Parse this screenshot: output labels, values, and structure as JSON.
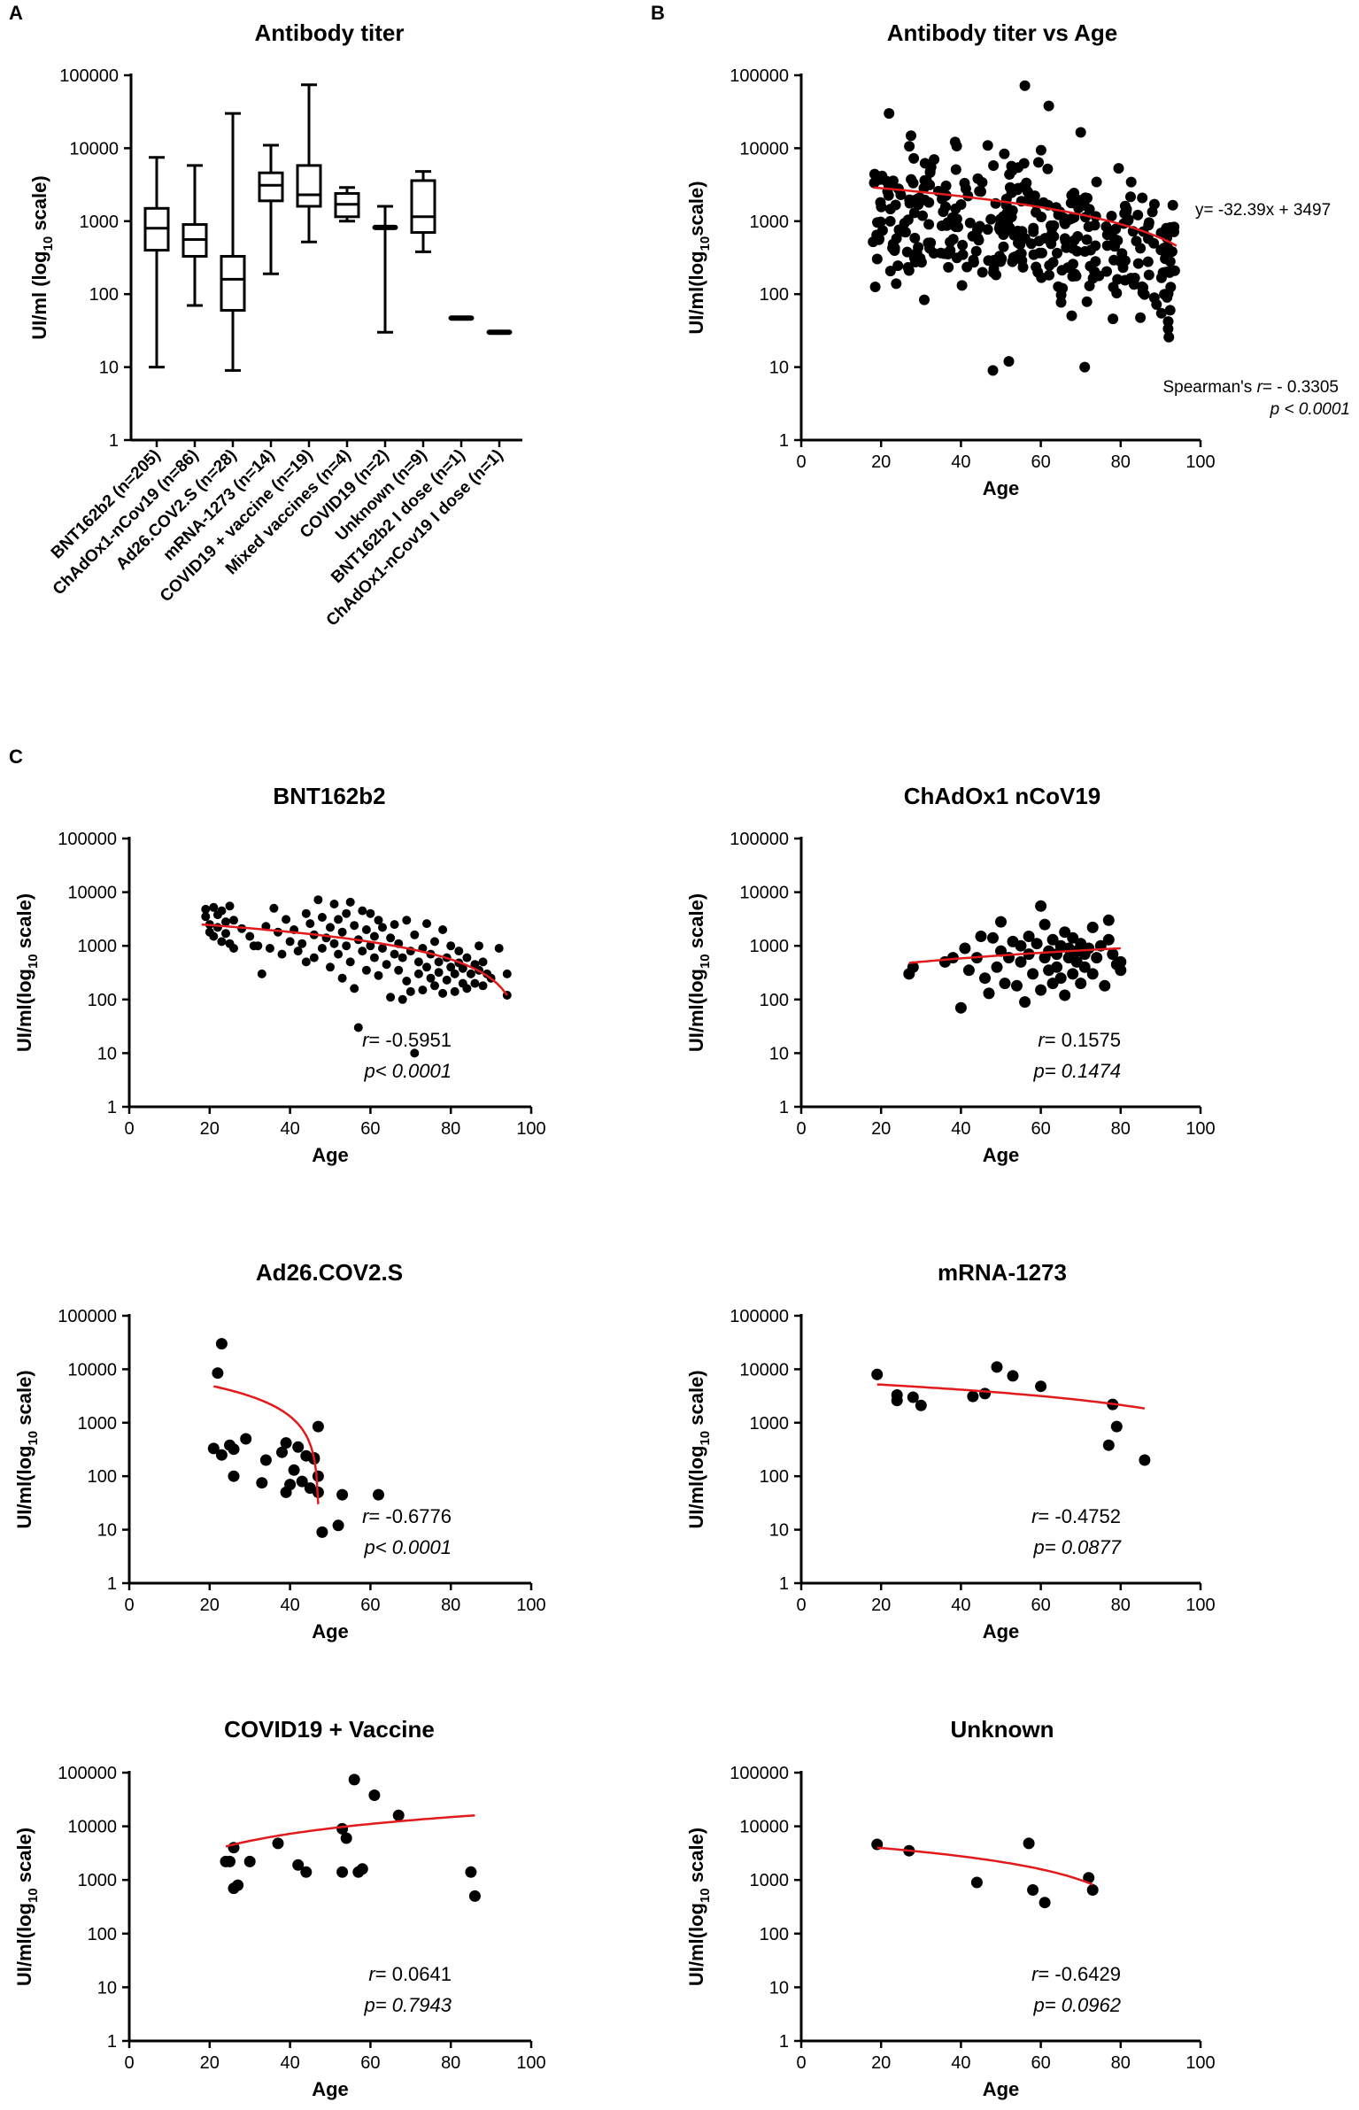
{
  "panels": {
    "A": "A",
    "B": "B",
    "C": "C"
  },
  "colors": {
    "fit": "#e31a1c",
    "point": "#000000",
    "axis": "#000000"
  },
  "chart_data": [
    {
      "id": "A",
      "type": "box",
      "title": "Antibody titer",
      "ylabel": "UI/ml (log10 scale)",
      "yscale": "log",
      "ylim": [
        1,
        100000
      ],
      "yticks": [
        "1",
        "10",
        "100",
        "1000",
        "10000",
        "100000"
      ],
      "categories": [
        "BNT162b2 (n=205)",
        "ChAdOx1-nCov19 (n=86)",
        "Ad26.COV2.S (n=28)",
        "mRNA-1273 (n=14)",
        "COVID19 + vaccine (n=19)",
        "Mixed vaccines (n=4)",
        "COVID19 (n=2)",
        "Unknown (n=9)",
        "BNT162b2 I dose (n=1)",
        "ChAdOx1-nCov19 I dose (n=1)"
      ],
      "boxes": [
        {
          "min": 10,
          "q1": 400,
          "median": 800,
          "q3": 1500,
          "max": 7500
        },
        {
          "min": 70,
          "q1": 330,
          "median": 560,
          "q3": 900,
          "max": 5800
        },
        {
          "min": 9,
          "q1": 60,
          "median": 160,
          "q3": 330,
          "max": 30000
        },
        {
          "min": 190,
          "q1": 1900,
          "median": 3100,
          "q3": 4600,
          "max": 11000
        },
        {
          "min": 520,
          "q1": 1600,
          "median": 2300,
          "q3": 5800,
          "max": 74000
        },
        {
          "min": 1000,
          "q1": 1150,
          "median": 1700,
          "q3": 2400,
          "max": 2900
        },
        {
          "min": 30,
          "q1": 780,
          "median": 800,
          "q3": 820,
          "max": 1600
        },
        {
          "min": 380,
          "q1": 700,
          "median": 1150,
          "q3": 3600,
          "max": 4800
        },
        {
          "min": 47,
          "q1": 47,
          "median": 47,
          "q3": 47,
          "max": 47
        },
        {
          "min": 30,
          "q1": 30,
          "median": 30,
          "q3": 30,
          "max": 30
        }
      ]
    },
    {
      "id": "B",
      "type": "scatter",
      "title": "Antibody titer vs Age",
      "xlabel": "Age",
      "ylabel": "UI/ml(log10scale)",
      "xlim": [
        0,
        100
      ],
      "ylim": [
        1,
        100000
      ],
      "xticks": [
        "0",
        "20",
        "40",
        "60",
        "80",
        "100"
      ],
      "yticks": [
        "1",
        "10",
        "100",
        "1000",
        "10000",
        "100000"
      ],
      "fit": {
        "x": [
          18,
          94
        ],
        "y": [
          2900,
          460
        ]
      },
      "equation": "y= -32.39x + 3497",
      "stat_r": "Spearman's r= - 0.3305",
      "stat_p": "p < 0.0001"
    },
    {
      "id": "C1",
      "type": "scatter",
      "title": "BNT162b2",
      "xlabel": "Age",
      "ylabel": "UI/ml(log10 scale)",
      "xlim": [
        0,
        100
      ],
      "ylim": [
        1,
        100000
      ],
      "xticks": [
        "0",
        "20",
        "40",
        "60",
        "80",
        "100"
      ],
      "yticks": [
        "1",
        "10",
        "100",
        "1000",
        "10000",
        "100000"
      ],
      "points": [
        [
          19,
          4800
        ],
        [
          19,
          3500
        ],
        [
          20,
          2500
        ],
        [
          20,
          1800
        ],
        [
          21,
          5200
        ],
        [
          21,
          1500
        ],
        [
          22,
          3800
        ],
        [
          22,
          2200
        ],
        [
          23,
          1200
        ],
        [
          23,
          4500
        ],
        [
          24,
          2800
        ],
        [
          24,
          1700
        ],
        [
          25,
          5500
        ],
        [
          25,
          1100
        ],
        [
          26,
          3000
        ],
        [
          26,
          900
        ],
        [
          28,
          2100
        ],
        [
          30,
          1500
        ],
        [
          31,
          1000
        ],
        [
          32,
          1000
        ],
        [
          33,
          300
        ],
        [
          34,
          2300
        ],
        [
          35,
          900
        ],
        [
          36,
          5000
        ],
        [
          37,
          1800
        ],
        [
          38,
          700
        ],
        [
          39,
          3100
        ],
        [
          40,
          1200
        ],
        [
          41,
          2000
        ],
        [
          42,
          800
        ],
        [
          43,
          1100
        ],
        [
          44,
          4000
        ],
        [
          44,
          500
        ],
        [
          45,
          2600
        ],
        [
          46,
          1600
        ],
        [
          46,
          600
        ],
        [
          47,
          7200
        ],
        [
          48,
          3400
        ],
        [
          48,
          900
        ],
        [
          49,
          1400
        ],
        [
          50,
          2200
        ],
        [
          50,
          400
        ],
        [
          51,
          6000
        ],
        [
          51,
          1100
        ],
        [
          52,
          3100
        ],
        [
          52,
          700
        ],
        [
          53,
          1800
        ],
        [
          53,
          250
        ],
        [
          54,
          4000
        ],
        [
          54,
          1000
        ],
        [
          55,
          6500
        ],
        [
          55,
          500
        ],
        [
          56,
          2400
        ],
        [
          56,
          160
        ],
        [
          57,
          30
        ],
        [
          57,
          1300
        ],
        [
          58,
          4500
        ],
        [
          58,
          800
        ],
        [
          59,
          2000
        ],
        [
          59,
          350
        ],
        [
          60,
          1000
        ],
        [
          60,
          4000
        ],
        [
          61,
          600
        ],
        [
          61,
          1500
        ],
        [
          62,
          3000
        ],
        [
          62,
          280
        ],
        [
          63,
          900
        ],
        [
          63,
          2200
        ],
        [
          64,
          450
        ],
        [
          65,
          1400
        ],
        [
          65,
          110
        ],
        [
          66,
          700
        ],
        [
          66,
          2500
        ],
        [
          67,
          350
        ],
        [
          67,
          1100
        ],
        [
          68,
          100
        ],
        [
          68,
          600
        ],
        [
          69,
          3000
        ],
        [
          69,
          220
        ],
        [
          70,
          800
        ],
        [
          70,
          140
        ],
        [
          71,
          10
        ],
        [
          71,
          1600
        ],
        [
          72,
          500
        ],
        [
          72,
          300
        ],
        [
          73,
          900
        ],
        [
          73,
          150
        ],
        [
          74,
          2600
        ],
        [
          74,
          400
        ],
        [
          75,
          700
        ],
        [
          75,
          250
        ],
        [
          76,
          1200
        ],
        [
          76,
          180
        ],
        [
          77,
          500
        ],
        [
          77,
          320
        ],
        [
          78,
          2000
        ],
        [
          78,
          130
        ],
        [
          79,
          600
        ],
        [
          79,
          230
        ],
        [
          80,
          400
        ],
        [
          80,
          1000
        ],
        [
          81,
          300
        ],
        [
          81,
          140
        ],
        [
          82,
          800
        ],
        [
          82,
          480
        ],
        [
          83,
          200
        ],
        [
          83,
          380
        ],
        [
          84,
          600
        ],
        [
          84,
          160
        ],
        [
          85,
          300
        ],
        [
          86,
          450
        ],
        [
          86,
          200
        ],
        [
          87,
          1000
        ],
        [
          87,
          350
        ],
        [
          88,
          500
        ],
        [
          88,
          180
        ],
        [
          89,
          300
        ],
        [
          90,
          250
        ],
        [
          92,
          900
        ],
        [
          94,
          300
        ],
        [
          94,
          120
        ]
      ],
      "fit": {
        "x": [
          18,
          94
        ],
        "y": [
          2500,
          120
        ]
      },
      "stat_r": "r= -0.5951",
      "stat_p": "p< 0.0001"
    },
    {
      "id": "C2",
      "type": "scatter",
      "title": "ChAdOx1 nCoV19",
      "xlabel": "Age",
      "ylabel": "UI/ml(log10 scale)",
      "xlim": [
        0,
        100
      ],
      "ylim": [
        1,
        100000
      ],
      "xticks": [
        "0",
        "20",
        "40",
        "60",
        "80",
        "100"
      ],
      "yticks": [
        "1",
        "10",
        "100",
        "1000",
        "10000",
        "100000"
      ],
      "points": [
        [
          27,
          300
        ],
        [
          28,
          400
        ],
        [
          36,
          500
        ],
        [
          38,
          600
        ],
        [
          40,
          70
        ],
        [
          41,
          900
        ],
        [
          42,
          350
        ],
        [
          44,
          600
        ],
        [
          45,
          1500
        ],
        [
          46,
          250
        ],
        [
          47,
          130
        ],
        [
          48,
          1400
        ],
        [
          49,
          400
        ],
        [
          50,
          800
        ],
        [
          50,
          2800
        ],
        [
          51,
          200
        ],
        [
          52,
          600
        ],
        [
          53,
          1200
        ],
        [
          54,
          180
        ],
        [
          55,
          500
        ],
        [
          55,
          1000
        ],
        [
          56,
          90
        ],
        [
          57,
          700
        ],
        [
          57,
          1500
        ],
        [
          58,
          300
        ],
        [
          59,
          1100
        ],
        [
          60,
          5500
        ],
        [
          60,
          150
        ],
        [
          61,
          600
        ],
        [
          61,
          2500
        ],
        [
          62,
          800
        ],
        [
          62,
          350
        ],
        [
          63,
          1300
        ],
        [
          63,
          200
        ],
        [
          64,
          700
        ],
        [
          64,
          400
        ],
        [
          65,
          1000
        ],
        [
          65,
          250
        ],
        [
          66,
          1800
        ],
        [
          66,
          120
        ],
        [
          67,
          600
        ],
        [
          67,
          900
        ],
        [
          68,
          300
        ],
        [
          68,
          1400
        ],
        [
          69,
          500
        ],
        [
          69,
          800
        ],
        [
          70,
          200
        ],
        [
          70,
          1100
        ],
        [
          71,
          400
        ],
        [
          71,
          700
        ],
        [
          72,
          900
        ],
        [
          73,
          2200
        ],
        [
          73,
          300
        ],
        [
          74,
          600
        ],
        [
          75,
          1000
        ],
        [
          76,
          180
        ],
        [
          77,
          1300
        ],
        [
          77,
          3000
        ],
        [
          78,
          700
        ],
        [
          79,
          450
        ],
        [
          80,
          500
        ],
        [
          80,
          350
        ]
      ],
      "fit": {
        "x": [
          27,
          80
        ],
        "y": [
          480,
          900
        ]
      },
      "stat_r": "r= 0.1575",
      "stat_p": "p= 0.1474"
    },
    {
      "id": "C3",
      "type": "scatter",
      "title": "Ad26.COV2.S",
      "xlabel": "Age",
      "ylabel": "UI/ml(log10 scale)",
      "xlim": [
        0,
        100
      ],
      "ylim": [
        1,
        100000
      ],
      "xticks": [
        "0",
        "20",
        "40",
        "60",
        "80",
        "100"
      ],
      "yticks": [
        "1",
        "10",
        "100",
        "1000",
        "10000",
        "100000"
      ],
      "points": [
        [
          21,
          330
        ],
        [
          22,
          8500
        ],
        [
          23,
          30000
        ],
        [
          23,
          250
        ],
        [
          25,
          380
        ],
        [
          26,
          100
        ],
        [
          26,
          320
        ],
        [
          29,
          500
        ],
        [
          33,
          75
        ],
        [
          34,
          200
        ],
        [
          38,
          280
        ],
        [
          39,
          50
        ],
        [
          39,
          420
        ],
        [
          40,
          70
        ],
        [
          41,
          130
        ],
        [
          42,
          350
        ],
        [
          43,
          80
        ],
        [
          44,
          240
        ],
        [
          45,
          60
        ],
        [
          46,
          220
        ],
        [
          47,
          850
        ],
        [
          47,
          100
        ],
        [
          47,
          50
        ],
        [
          48,
          9
        ],
        [
          52,
          12
        ],
        [
          53,
          45
        ],
        [
          62,
          45
        ],
        [
          46,
          210
        ]
      ],
      "fit": {
        "x": [
          21,
          47
        ],
        "y": [
          4800,
          30
        ]
      },
      "stat_r": "r= -0.6776",
      "stat_p": "p< 0.0001"
    },
    {
      "id": "C4",
      "type": "scatter",
      "title": "mRNA-1273",
      "xlabel": "Age",
      "ylabel": "UI/ml(log10 scale)",
      "xlim": [
        0,
        100
      ],
      "ylim": [
        1,
        100000
      ],
      "xticks": [
        "0",
        "20",
        "40",
        "60",
        "80",
        "100"
      ],
      "yticks": [
        "1",
        "10",
        "100",
        "1000",
        "10000",
        "100000"
      ],
      "points": [
        [
          19,
          8000
        ],
        [
          24,
          2600
        ],
        [
          24,
          3300
        ],
        [
          28,
          3000
        ],
        [
          30,
          2100
        ],
        [
          43,
          3100
        ],
        [
          46,
          3500
        ],
        [
          49,
          11000
        ],
        [
          53,
          7500
        ],
        [
          60,
          4800
        ],
        [
          77,
          380
        ],
        [
          78,
          2200
        ],
        [
          79,
          850
        ],
        [
          86,
          200
        ]
      ],
      "fit": {
        "x": [
          19,
          86
        ],
        "y": [
          5200,
          1850
        ]
      },
      "stat_r": "r= -0.4752",
      "stat_p": "p= 0.0877"
    },
    {
      "id": "C5",
      "type": "scatter",
      "title": "COVID19 + Vaccine",
      "xlabel": "Age",
      "ylabel": "UI/ml(log10 scale)",
      "xlim": [
        0,
        100
      ],
      "ylim": [
        1,
        100000
      ],
      "xticks": [
        "0",
        "20",
        "40",
        "60",
        "80",
        "100"
      ],
      "yticks": [
        "1",
        "10",
        "100",
        "1000",
        "10000",
        "100000"
      ],
      "points": [
        [
          24,
          2200
        ],
        [
          25,
          2200
        ],
        [
          26,
          4000
        ],
        [
          26,
          700
        ],
        [
          27,
          800
        ],
        [
          30,
          2200
        ],
        [
          37,
          4800
        ],
        [
          42,
          1900
        ],
        [
          44,
          1400
        ],
        [
          53,
          9000
        ],
        [
          54,
          6000
        ],
        [
          53,
          1400
        ],
        [
          56,
          74000
        ],
        [
          57,
          1400
        ],
        [
          58,
          1600
        ],
        [
          61,
          38000
        ],
        [
          67,
          16000
        ],
        [
          85,
          1400
        ],
        [
          86,
          500
        ]
      ],
      "fit": {
        "x": [
          24,
          86
        ],
        "y": [
          4200,
          16000
        ]
      },
      "stat_r": "r= 0.0641",
      "stat_p": "p= 0.7943"
    },
    {
      "id": "C6",
      "type": "scatter",
      "title": "Unknown",
      "xlabel": "Age",
      "ylabel": "UI/ml(log10 scale)",
      "xlim": [
        0,
        100
      ],
      "ylim": [
        1,
        100000
      ],
      "xticks": [
        "0",
        "20",
        "40",
        "60",
        "80",
        "100"
      ],
      "yticks": [
        "1",
        "10",
        "100",
        "1000",
        "10000",
        "100000"
      ],
      "points": [
        [
          19,
          4600
        ],
        [
          27,
          3500
        ],
        [
          44,
          900
        ],
        [
          57,
          4800
        ],
        [
          58,
          650
        ],
        [
          61,
          380
        ],
        [
          72,
          1100
        ],
        [
          73,
          650
        ]
      ],
      "fit": {
        "x": [
          19,
          73
        ],
        "y": [
          4000,
          820
        ]
      },
      "stat_r": "r= -0.6429",
      "stat_p": "p= 0.0962"
    }
  ]
}
